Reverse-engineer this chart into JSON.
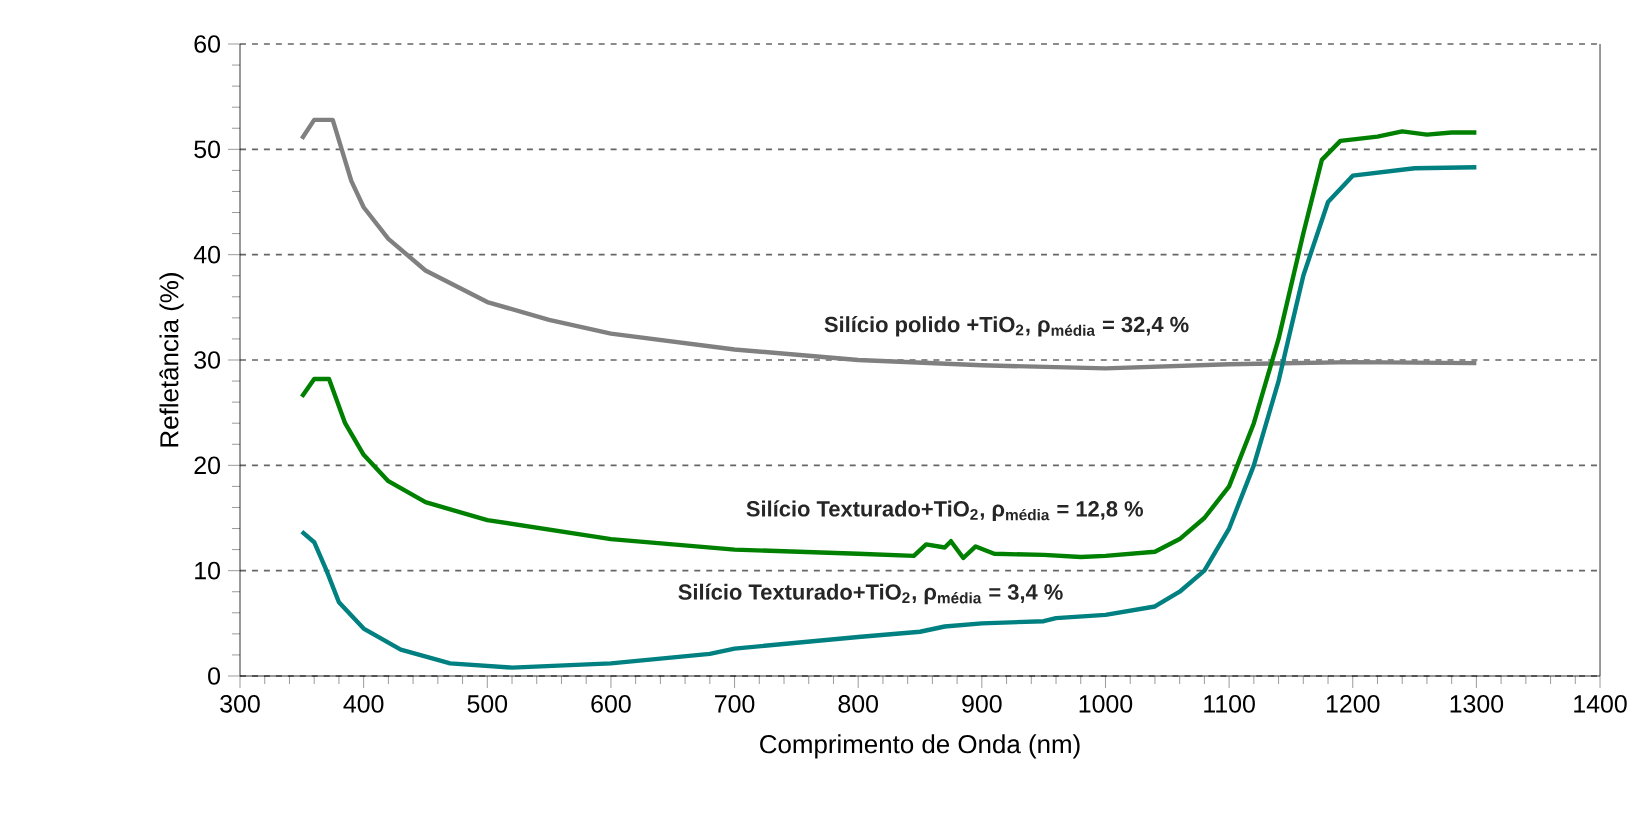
{
  "chart_data": {
    "type": "line",
    "xlabel": "Comprimento de Onda (nm)",
    "ylabel": "Refletância (%)",
    "xlim": [
      300,
      1400
    ],
    "xticks": [
      300,
      400,
      500,
      600,
      700,
      800,
      900,
      1000,
      1100,
      1200,
      1300,
      1400
    ],
    "ylim": [
      0,
      60
    ],
    "yticks": [
      0,
      10,
      20,
      30,
      40,
      50,
      60
    ],
    "grid": "y",
    "line_style": "solid",
    "marker": "none",
    "series": [
      {
        "name": "Silício polido +TiO$_{2}$, ρ$_{média}$ = 32,4 %",
        "color": "#808080",
        "x": [
          350,
          360,
          375,
          390,
          400,
          420,
          450,
          500,
          550,
          600,
          700,
          800,
          900,
          1000,
          1100,
          1200,
          1300
        ],
        "values": [
          51,
          52.8,
          52.8,
          47,
          44.5,
          41.5,
          38.5,
          35.5,
          33.8,
          32.5,
          31,
          30,
          29.5,
          29.2,
          29.6,
          29.8,
          29.7
        ]
      },
      {
        "name": "Silício Texturado+TiO$_{2}$, ρ$_{média}$ = 12,8 %",
        "color": "#008000",
        "x": [
          350,
          360,
          372,
          385,
          400,
          420,
          450,
          500,
          600,
          700,
          800,
          845,
          855,
          870,
          875,
          885,
          895,
          910,
          950,
          980,
          1000,
          1040,
          1060,
          1080,
          1100,
          1120,
          1140,
          1160,
          1175,
          1190,
          1220,
          1240,
          1260,
          1280,
          1300
        ],
        "values": [
          26.5,
          28.2,
          28.2,
          24,
          21,
          18.5,
          16.5,
          14.8,
          13,
          12,
          11.6,
          11.4,
          12.5,
          12.2,
          12.8,
          11.2,
          12.3,
          11.6,
          11.5,
          11.3,
          11.4,
          11.8,
          13,
          15,
          18,
          24,
          32,
          42,
          49,
          50.8,
          51.2,
          51.7,
          51.4,
          51.6,
          51.6
        ]
      },
      {
        "name": "Silício Texturado+TiO$_{2}$, ρ$_{média}$ = 3,4 %",
        "color": "#008080",
        "x": [
          350,
          360,
          370,
          380,
          400,
          430,
          470,
          520,
          600,
          680,
          700,
          800,
          850,
          870,
          900,
          950,
          960,
          1000,
          1040,
          1060,
          1080,
          1100,
          1120,
          1140,
          1160,
          1180,
          1200,
          1250,
          1300
        ],
        "values": [
          13.7,
          12.7,
          10,
          7,
          4.5,
          2.5,
          1.2,
          0.8,
          1.2,
          2.1,
          2.6,
          3.7,
          4.2,
          4.7,
          5,
          5.2,
          5.5,
          5.8,
          6.6,
          8,
          10,
          14,
          20,
          28,
          38,
          45,
          47.5,
          48.2,
          48.3
        ]
      }
    ]
  }
}
